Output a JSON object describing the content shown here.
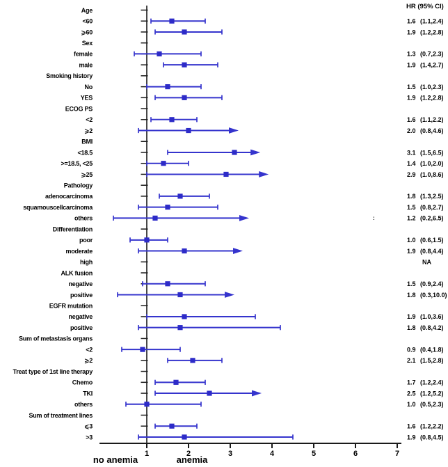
{
  "header": {
    "hr_column_title": "HR  (95% CI)"
  },
  "colors": {
    "ci_line": "#3534cd",
    "marker": "#2d2bc8",
    "axis": "#1a1a1a",
    "text": "#000000",
    "artifact": "#777777"
  },
  "chart_data": {
    "type": "forest",
    "title": "HR  (95% CI)",
    "x_axis": {
      "ticks": [
        "1",
        "2",
        "3",
        "4",
        "5",
        "6",
        "7"
      ],
      "null_line": 1,
      "range_drawn": [
        0.0,
        7.1
      ]
    },
    "footer_labels": {
      "left": "no anemia",
      "right": "anemia"
    },
    "na_text": "NA",
    "artifact_text": ":",
    "rows": [
      {
        "label": "Age",
        "type": "header"
      },
      {
        "label": "<60",
        "type": "data",
        "est": 1.6,
        "lo": 1.1,
        "hi": 2.4,
        "hr_text": "1.6",
        "ci_text": "(1.1,2.4)",
        "arrow": false
      },
      {
        "label": "⩾60",
        "type": "data",
        "est": 1.9,
        "lo": 1.2,
        "hi": 2.8,
        "hr_text": "1.9",
        "ci_text": "(1.2,2.8)",
        "arrow": false
      },
      {
        "label": "Sex",
        "type": "header"
      },
      {
        "label": "female",
        "type": "data",
        "est": 1.3,
        "lo": 0.7,
        "hi": 2.3,
        "hr_text": "1.3",
        "ci_text": "(0.7,2.3)",
        "arrow": false
      },
      {
        "label": "male",
        "type": "data",
        "est": 1.9,
        "lo": 1.4,
        "hi": 2.7,
        "hr_text": "1.9",
        "ci_text": "(1.4,2.7)",
        "arrow": false
      },
      {
        "label": "Smoking history",
        "type": "header"
      },
      {
        "label": "No",
        "type": "data",
        "est": 1.5,
        "lo": 1.0,
        "hi": 2.3,
        "hr_text": "1.5",
        "ci_text": "(1.0,2.3)",
        "arrow": false
      },
      {
        "label": "YES",
        "type": "data",
        "est": 1.9,
        "lo": 1.2,
        "hi": 2.8,
        "hr_text": "1.9",
        "ci_text": "(1.2,2.8)",
        "arrow": false
      },
      {
        "label": "ECOG PS",
        "type": "header"
      },
      {
        "label": "<2",
        "type": "data",
        "est": 1.6,
        "lo": 1.1,
        "hi": 2.2,
        "hr_text": "1.6",
        "ci_text": "(1.1,2.2)",
        "arrow": false
      },
      {
        "label": "⩾2",
        "type": "data",
        "est": 2.0,
        "lo": 0.8,
        "hi": 4.6,
        "hr_text": "2.0",
        "ci_text": "(0.8,4.6)",
        "arrow": true,
        "drawn_hi": 3.1
      },
      {
        "label": "BMI",
        "type": "header"
      },
      {
        "label": "<18.5",
        "type": "data",
        "est": 3.1,
        "lo": 1.5,
        "hi": 6.5,
        "hr_text": "3.1",
        "ci_text": "(1.5,6.5)",
        "arrow": true,
        "drawn_hi": 3.62
      },
      {
        "label": ">=18.5, <25",
        "type": "data",
        "est": 1.4,
        "lo": 1.0,
        "hi": 2.0,
        "hr_text": "1.4",
        "ci_text": "(1.0,2.0)",
        "arrow": false
      },
      {
        "label": "⩾25",
        "type": "data",
        "est": 2.9,
        "lo": 1.0,
        "hi": 8.6,
        "hr_text": "2.9",
        "ci_text": "(1.0,8.6)",
        "arrow": true,
        "drawn_hi": 3.82
      },
      {
        "label": "Pathology",
        "type": "header"
      },
      {
        "label": "adenocarcinoma",
        "type": "data",
        "est": 1.8,
        "lo": 1.3,
        "hi": 2.5,
        "hr_text": "1.8",
        "ci_text": "(1.3,2.5)",
        "arrow": false
      },
      {
        "label": "squamouscellcarcinoma",
        "type": "data",
        "est": 1.5,
        "lo": 0.8,
        "hi": 2.7,
        "hr_text": "1.5",
        "ci_text": "(0.8,2.7)",
        "arrow": false
      },
      {
        "label": "others",
        "type": "data",
        "est": 1.2,
        "lo": 0.2,
        "hi": 6.5,
        "hr_text": "1.2",
        "ci_text": "(0.2,6.5)",
        "arrow": true,
        "drawn_hi": 3.35
      },
      {
        "label": "Differentiation",
        "type": "header"
      },
      {
        "label": "poor",
        "type": "data",
        "est": 1.0,
        "lo": 0.6,
        "hi": 1.5,
        "hr_text": "1.0",
        "ci_text": "(0.6,1.5)",
        "arrow": false
      },
      {
        "label": "moderate",
        "type": "data",
        "est": 1.9,
        "lo": 0.8,
        "hi": 4.4,
        "hr_text": "1.9",
        "ci_text": "(0.8,4.4)",
        "arrow": true,
        "drawn_hi": 3.2
      },
      {
        "label": "high",
        "type": "na"
      },
      {
        "label": "ALK fusion",
        "type": "header"
      },
      {
        "label": "negative",
        "type": "data",
        "est": 1.5,
        "lo": 0.9,
        "hi": 2.4,
        "hr_text": "1.5",
        "ci_text": "(0.9,2.4)",
        "arrow": false
      },
      {
        "label": "positive",
        "type": "data",
        "est": 1.8,
        "lo": 0.3,
        "hi": 10.0,
        "hr_text": "1.8",
        "ci_text": "(0.3,10.0)",
        "arrow": true,
        "drawn_hi": 3.0
      },
      {
        "label": "EGFR mutation",
        "type": "header"
      },
      {
        "label": "negative",
        "type": "data",
        "est": 1.9,
        "lo": 1.0,
        "hi": 3.6,
        "hr_text": "1.9",
        "ci_text": "(1.0,3.6)",
        "arrow": false
      },
      {
        "label": "positive",
        "type": "data",
        "est": 1.8,
        "lo": 0.8,
        "hi": 4.2,
        "hr_text": "1.8",
        "ci_text": "(0.8,4.2)",
        "arrow": false
      },
      {
        "label": "Sum of metastasis organs",
        "type": "header"
      },
      {
        "label": "<2",
        "type": "data",
        "est": 0.9,
        "lo": 0.4,
        "hi": 1.8,
        "hr_text": "0.9",
        "ci_text": "(0.4,1.8)",
        "arrow": false
      },
      {
        "label": "⩾2",
        "type": "data",
        "est": 2.1,
        "lo": 1.5,
        "hi": 2.8,
        "hr_text": "2.1",
        "ci_text": "(1.5,2.8)",
        "arrow": false
      },
      {
        "label": "Treat type of 1st line therapy",
        "type": "header"
      },
      {
        "label": "Chemo",
        "type": "data",
        "est": 1.7,
        "lo": 1.2,
        "hi": 2.4,
        "hr_text": "1.7",
        "ci_text": "(1.2,2.4)",
        "arrow": false
      },
      {
        "label": "TKI",
        "type": "data",
        "est": 2.5,
        "lo": 1.2,
        "hi": 5.2,
        "hr_text": "2.5",
        "ci_text": "(1.2,5.2)",
        "arrow": true,
        "drawn_hi": 3.65
      },
      {
        "label": "others",
        "type": "data",
        "est": 1.0,
        "lo": 0.5,
        "hi": 2.3,
        "hr_text": "1.0",
        "ci_text": "(0.5,2.3)",
        "arrow": false
      },
      {
        "label": "Sum of treatment lines",
        "type": "header"
      },
      {
        "label": "⩽3",
        "type": "data",
        "est": 1.6,
        "lo": 1.2,
        "hi": 2.2,
        "hr_text": "1.6",
        "ci_text": "(1.2,2.2)",
        "arrow": false
      },
      {
        "label": ">3",
        "type": "data",
        "est": 1.9,
        "lo": 0.8,
        "hi": 4.5,
        "hr_text": "1.9",
        "ci_text": "(0.8,4.5)",
        "arrow": false
      }
    ]
  }
}
